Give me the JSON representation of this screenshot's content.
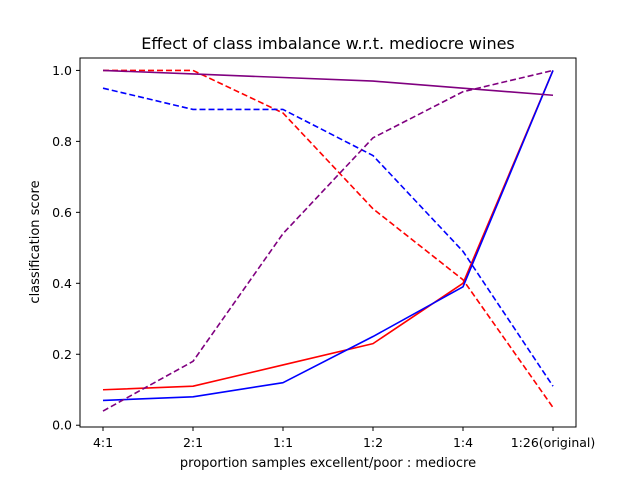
{
  "chart_data": {
    "type": "line",
    "title": "Effect of class imbalance w.r.t. mediocre wines",
    "xlabel": "proportion samples excellent/poor : mediocre",
    "ylabel": "classification score",
    "categories": [
      "4:1",
      "2:1",
      "1:1",
      "1:2",
      "1:4",
      "1:26(original)"
    ],
    "ylim": [
      -0.005,
      1.035
    ],
    "yticks": [
      "0.0",
      "0.2",
      "0.4",
      "0.6",
      "0.8",
      "1.0"
    ],
    "grid": false,
    "series": [
      {
        "color": "#ff0000",
        "style": "solid",
        "values": [
          0.1,
          0.11,
          0.17,
          0.23,
          0.4,
          1.0
        ]
      },
      {
        "color": "#ff0000",
        "style": "dashed",
        "values": [
          1.0,
          1.0,
          0.88,
          0.61,
          0.41,
          0.05
        ]
      },
      {
        "color": "#0000ff",
        "style": "solid",
        "values": [
          0.07,
          0.08,
          0.12,
          0.25,
          0.39,
          1.0
        ]
      },
      {
        "color": "#0000ff",
        "style": "dashed",
        "values": [
          0.95,
          0.89,
          0.89,
          0.76,
          0.49,
          0.11
        ]
      },
      {
        "color": "#800080",
        "style": "solid",
        "values": [
          1.0,
          0.99,
          0.98,
          0.97,
          0.95,
          0.93
        ]
      },
      {
        "color": "#800080",
        "style": "dashed",
        "values": [
          0.04,
          0.18,
          0.54,
          0.81,
          0.94,
          1.0
        ]
      }
    ]
  }
}
